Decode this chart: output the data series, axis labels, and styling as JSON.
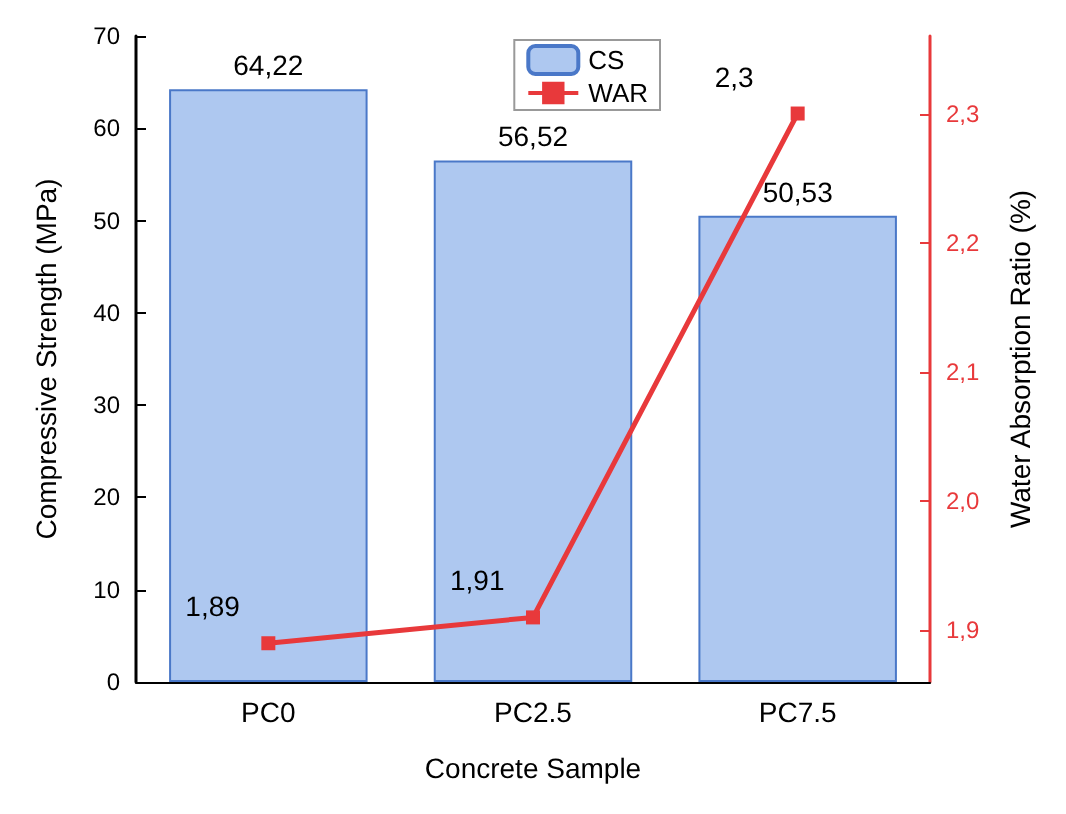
{
  "chart_data": {
    "type": "bar",
    "xlabel": "Concrete Sample",
    "ylabel": "Compressive Strength (MPa)",
    "y2label": "Water Absorption Ratio (%)",
    "categories": [
      "PC0",
      "PC2.5",
      "PC7.5"
    ],
    "series": [
      {
        "name": "CS",
        "color": "#aec8f0",
        "values": [
          64.22,
          56.52,
          50.53
        ],
        "value_labels": [
          "64,22",
          "56,52",
          "50,53"
        ]
      },
      {
        "name": "WAR",
        "type": "line",
        "axis": "y2",
        "color": "#e8393b",
        "marker": "square",
        "values": [
          1.89,
          1.91,
          2.3
        ],
        "value_labels": [
          "1,89",
          "1,91",
          "2,3"
        ]
      }
    ],
    "ylim": [
      0,
      70
    ],
    "yticks": [
      0,
      10,
      20,
      30,
      40,
      50,
      60,
      70
    ],
    "y2lim": [
      1.86,
      2.36
    ],
    "y2ticks": [
      {
        "value": 1.9,
        "label": "1,9"
      },
      {
        "value": 2.0,
        "label": "2,0"
      },
      {
        "value": 2.1,
        "label": "2,1"
      },
      {
        "value": 2.2,
        "label": "2,2"
      },
      {
        "value": 2.3,
        "label": "2,3"
      }
    ],
    "legend": "top right",
    "grid": false
  }
}
